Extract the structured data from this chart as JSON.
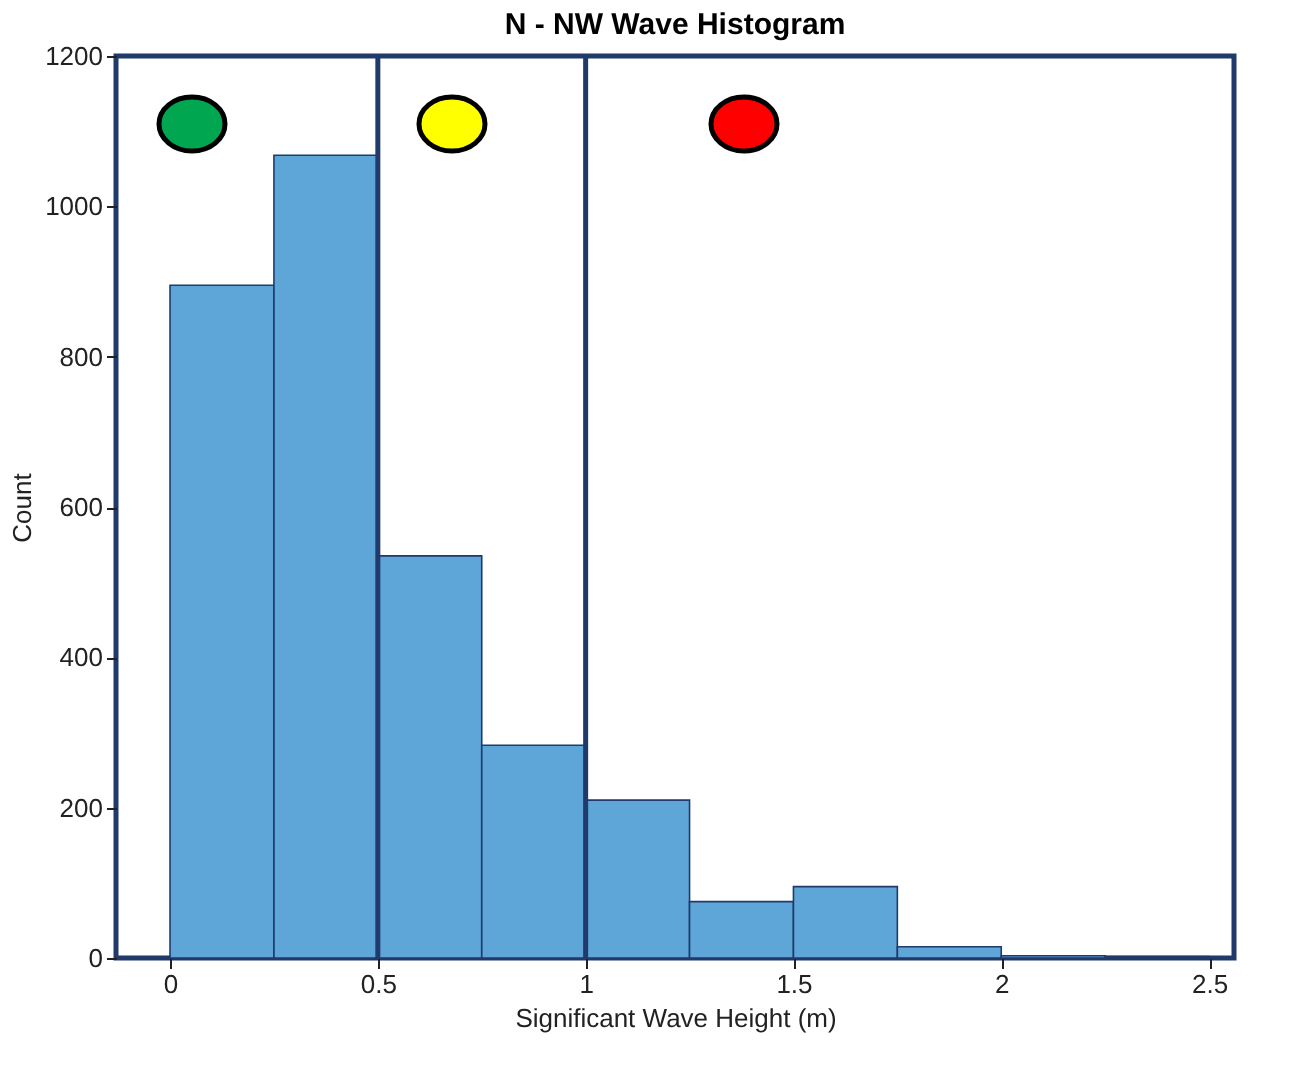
{
  "chart_data": {
    "type": "histogram",
    "title": "N - NW Wave Histogram",
    "xlabel": "Significant Wave Height (m)",
    "ylabel": "Count",
    "bins": [
      0,
      0.25,
      0.5,
      0.75,
      1,
      1.25,
      1.5,
      1.75,
      2,
      2.25,
      2.5
    ],
    "values": [
      895,
      1068,
      535,
      283,
      210,
      75,
      95,
      15,
      3,
      2
    ],
    "color": "#5ea5d8",
    "xlim": [
      -0.13,
      2.56
    ],
    "xticks": [
      0,
      0.5,
      1,
      1.5,
      2,
      2.5
    ],
    "ylim": [
      0,
      1200
    ],
    "yticks": [
      0,
      200,
      400,
      600,
      800,
      1000,
      1200
    ],
    "ref_lines": [
      {
        "axis": "x",
        "value": 0.5,
        "color": "#1f3a6b"
      },
      {
        "axis": "x",
        "value": 1,
        "color": "#1f3a6b"
      }
    ],
    "grid": false
  }
}
